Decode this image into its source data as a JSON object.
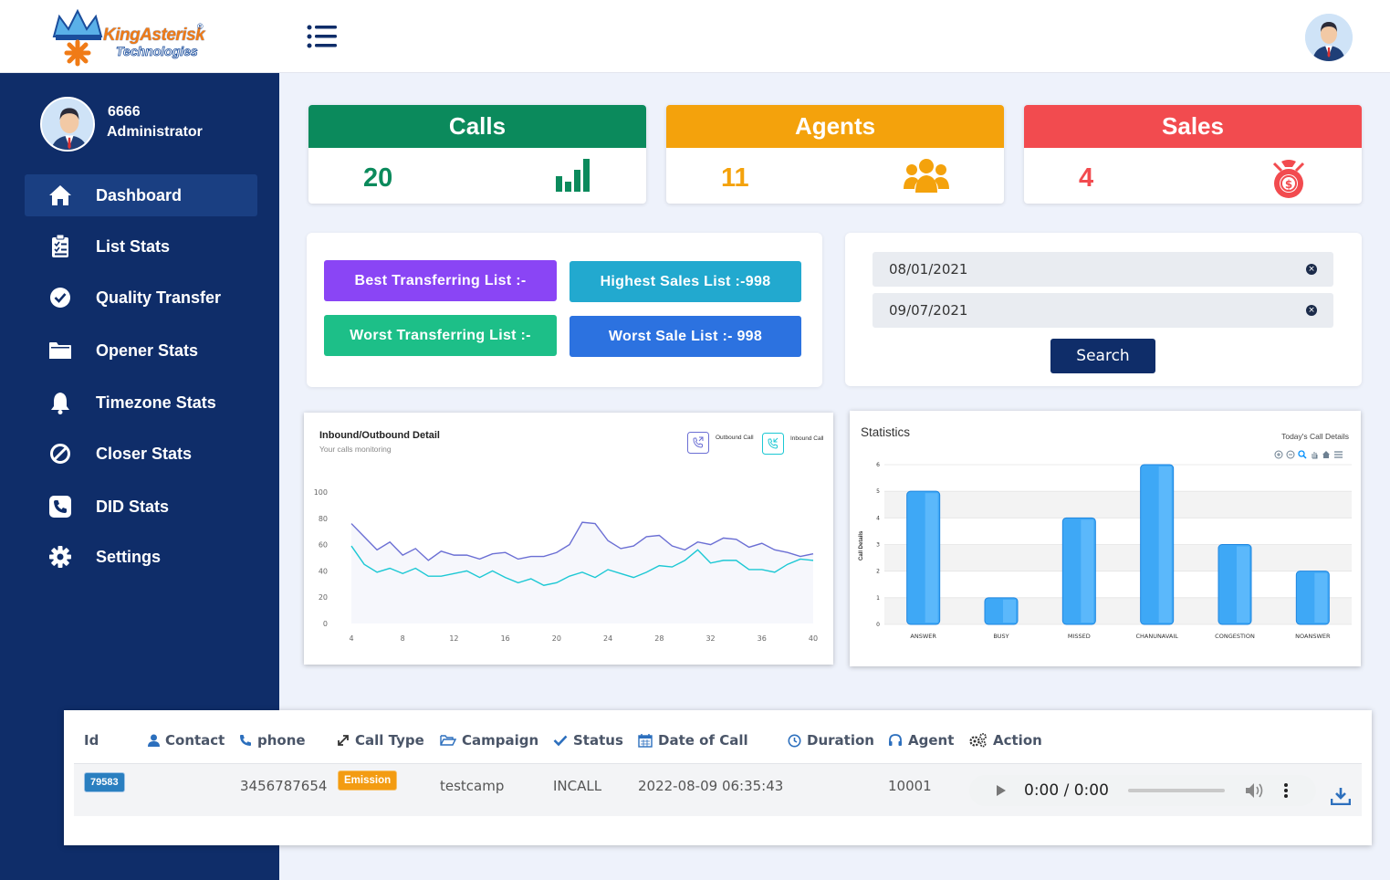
{
  "header": {
    "brand_line1": "KingAsterisk",
    "brand_line2": "Technologies",
    "brand_mark": "®"
  },
  "profile": {
    "user_id": "6666",
    "role": "Administrator"
  },
  "sidebar": {
    "items": [
      {
        "label": "Dashboard",
        "icon": "home-icon"
      },
      {
        "label": "List Stats",
        "icon": "clipboard-list-icon"
      },
      {
        "label": "Quality Transfer",
        "icon": "check-circle-icon"
      },
      {
        "label": "Opener Stats",
        "icon": "folder-icon"
      },
      {
        "label": "Timezone Stats",
        "icon": "bell-icon"
      },
      {
        "label": "Closer Stats",
        "icon": "ban-icon"
      },
      {
        "label": "DID Stats",
        "icon": "phone-square-icon"
      },
      {
        "label": "Settings",
        "icon": "gear-icon"
      }
    ]
  },
  "stats": {
    "calls": {
      "title": "Calls",
      "value": "20",
      "color": "#0b8a5c",
      "icon": "bar-chart-icon"
    },
    "agents": {
      "title": "Agents",
      "value": "11",
      "color": "#f4a20c",
      "icon": "users-icon"
    },
    "sales": {
      "title": "Sales",
      "value": "4",
      "color": "#f24b4f",
      "icon": "money-bag-icon"
    }
  },
  "lists": {
    "best_transferring": "Best Transferring List :-",
    "highest_sales": "Highest Sales List :-998",
    "worst_transferring": "Worst Transferring List :-",
    "worst_sale": "Worst Sale List :- 998"
  },
  "filter": {
    "date_from": "08/01/2021",
    "date_to": "09/07/2021",
    "search_label": "Search",
    "clear_glyph": "×"
  },
  "chart_data": [
    {
      "type": "line",
      "title": "Inbound/Outbound Detail",
      "subtitle": "Your calls monitoring",
      "x": [
        4,
        5,
        6,
        7,
        8,
        9,
        10,
        11,
        12,
        13,
        14,
        15,
        16,
        17,
        18,
        19,
        20,
        21,
        22,
        23,
        24,
        25,
        26,
        27,
        28,
        29,
        30,
        31,
        32,
        33,
        34,
        35,
        36,
        37,
        38,
        39,
        40
      ],
      "xticks": [
        4,
        8,
        12,
        16,
        20,
        24,
        28,
        32,
        36,
        40
      ],
      "yticks": [
        0,
        20,
        40,
        60,
        80,
        100
      ],
      "ylim": [
        0,
        100
      ],
      "series": [
        {
          "name": "Outbound Call",
          "color": "#6b6fd4",
          "values": [
            76,
            66,
            56,
            62,
            52,
            57,
            48,
            55,
            52,
            52,
            49,
            53,
            54,
            49,
            51,
            51,
            54,
            60,
            77,
            76,
            63,
            57,
            59,
            66,
            67,
            59,
            56,
            62,
            60,
            65,
            64,
            58,
            61,
            56,
            54,
            51,
            53
          ]
        },
        {
          "name": "Inbound Call",
          "color": "#1cc8d4",
          "values": [
            59,
            45,
            39,
            42,
            38,
            42,
            36,
            36,
            38,
            40,
            35,
            40,
            35,
            31,
            34,
            29,
            31,
            36,
            39,
            35,
            41,
            38,
            35,
            39,
            44,
            43,
            48,
            56,
            46,
            48,
            48,
            41,
            41,
            39,
            45,
            49,
            48
          ]
        }
      ]
    },
    {
      "type": "bar",
      "title": "Statistics",
      "subtitle": "Today's Call Details",
      "ylabel": "Call Details",
      "categories": [
        "ANSWER",
        "BUSY",
        "MISSED",
        "CHANUNAVAIL",
        "CONGESTION",
        "NOANSWER"
      ],
      "values": [
        5,
        1,
        4,
        6,
        3,
        2
      ],
      "yticks": [
        0,
        1,
        2,
        3,
        4,
        5,
        6
      ],
      "ylim": [
        0,
        6
      ],
      "color": "#3ea8f6"
    }
  ],
  "table": {
    "headers": [
      {
        "label": "Id",
        "icon": ""
      },
      {
        "label": "Contact",
        "icon": "user-icon"
      },
      {
        "label": "phone",
        "icon": "phone-icon"
      },
      {
        "label": "Call Type",
        "icon": "expand-icon"
      },
      {
        "label": "Campaign",
        "icon": "folder-open-icon"
      },
      {
        "label": "Status",
        "icon": "check-icon"
      },
      {
        "label": "Date of Call",
        "icon": "calendar-icon"
      },
      {
        "label": "Duration",
        "icon": "clock-icon"
      },
      {
        "label": "Agent",
        "icon": "headset-icon"
      },
      {
        "label": "Action",
        "icon": "cogs-icon"
      }
    ],
    "row": {
      "id": "79583",
      "id_color": "#2a7fc0",
      "phone": "3456787654",
      "call_type": "Emission",
      "call_type_color": "#f39c12",
      "campaign": "testcamp",
      "status": "INCALL",
      "date": "2022-08-09 06:35:43",
      "agent": "10001",
      "audio_time": "0:00 / 0:00"
    }
  }
}
